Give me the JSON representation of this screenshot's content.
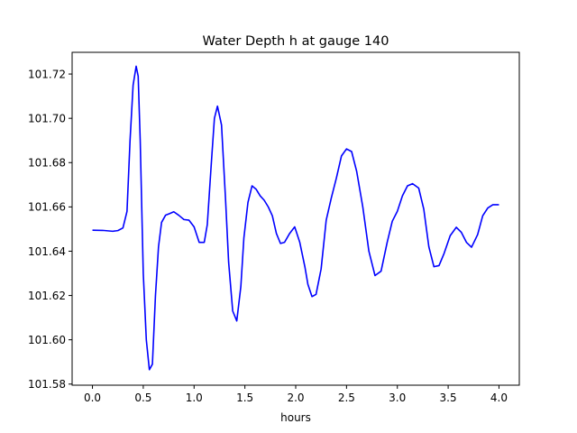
{
  "chart_data": {
    "type": "line",
    "title": "Water Depth h at gauge 140",
    "xlabel": "hours",
    "ylabel": "",
    "xlim": [
      -0.2,
      4.2
    ],
    "ylim": [
      101.5795,
      101.7298
    ],
    "xticks": [
      0.0,
      0.5,
      1.0,
      1.5,
      2.0,
      2.5,
      3.0,
      3.5,
      4.0
    ],
    "xtick_labels": [
      "0.0",
      "0.5",
      "1.0",
      "1.5",
      "2.0",
      "2.5",
      "3.0",
      "3.5",
      "4.0"
    ],
    "yticks": [
      101.58,
      101.6,
      101.62,
      101.64,
      101.66,
      101.68,
      101.7,
      101.72
    ],
    "ytick_labels": [
      "101.58",
      "101.60",
      "101.62",
      "101.64",
      "101.66",
      "101.68",
      "101.70",
      "101.72"
    ],
    "grid": false,
    "series": [
      {
        "name": "",
        "color": "#0000ff",
        "x": [
          0.0,
          0.1,
          0.2,
          0.25,
          0.3,
          0.34,
          0.37,
          0.4,
          0.43,
          0.45,
          0.47,
          0.5,
          0.53,
          0.56,
          0.59,
          0.62,
          0.65,
          0.68,
          0.72,
          0.76,
          0.8,
          0.85,
          0.9,
          0.95,
          1.0,
          1.05,
          1.1,
          1.13,
          1.17,
          1.2,
          1.23,
          1.27,
          1.31,
          1.34,
          1.38,
          1.42,
          1.46,
          1.49,
          1.53,
          1.57,
          1.61,
          1.65,
          1.69,
          1.73,
          1.77,
          1.81,
          1.85,
          1.89,
          1.94,
          1.99,
          2.04,
          2.09,
          2.12,
          2.16,
          2.2,
          2.25,
          2.3,
          2.35,
          2.4,
          2.45,
          2.5,
          2.55,
          2.6,
          2.66,
          2.72,
          2.78,
          2.84,
          2.9,
          2.95,
          3.0,
          3.05,
          3.1,
          3.15,
          3.21,
          3.26,
          3.31,
          3.36,
          3.41,
          3.46,
          3.52,
          3.58,
          3.63,
          3.68,
          3.73,
          3.79,
          3.84,
          3.89,
          3.94,
          4.0
        ],
        "values": [
          101.6495,
          101.6494,
          101.649,
          101.6493,
          101.6505,
          101.658,
          101.69,
          101.715,
          101.7235,
          101.719,
          101.69,
          101.63,
          101.6,
          101.5865,
          101.589,
          101.62,
          101.642,
          101.653,
          101.6563,
          101.657,
          101.6578,
          101.6562,
          101.6543,
          101.654,
          101.651,
          101.644,
          101.644,
          101.652,
          101.68,
          101.7,
          101.7055,
          101.697,
          101.663,
          101.635,
          101.613,
          101.6085,
          101.624,
          101.646,
          101.662,
          101.6695,
          101.668,
          101.665,
          101.663,
          101.66,
          101.656,
          101.648,
          101.6435,
          101.644,
          101.648,
          101.651,
          101.644,
          101.633,
          101.625,
          101.6195,
          101.6205,
          101.632,
          101.654,
          101.664,
          101.673,
          101.683,
          101.6862,
          101.685,
          101.676,
          101.66,
          101.64,
          101.629,
          101.631,
          101.644,
          101.6535,
          101.658,
          101.665,
          101.6695,
          101.6705,
          101.6685,
          101.659,
          101.642,
          101.633,
          101.6335,
          101.639,
          101.647,
          101.6508,
          101.6485,
          101.644,
          101.6418,
          101.6475,
          101.656,
          101.6595,
          101.661,
          101.661
        ]
      }
    ]
  }
}
